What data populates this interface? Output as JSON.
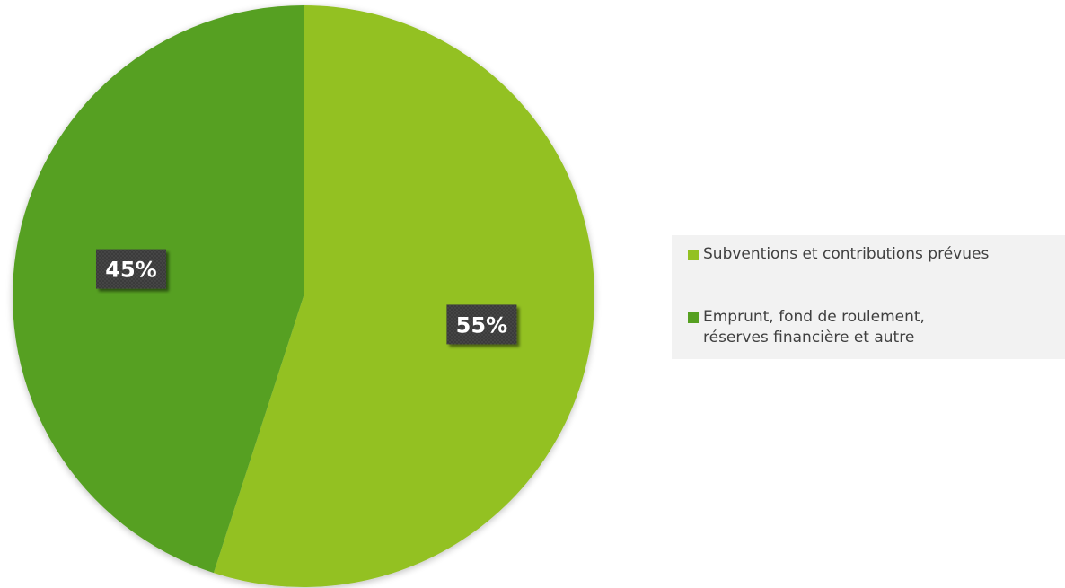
{
  "chart_data": {
    "type": "pie",
    "slices": [
      {
        "label": "Subventions et contributions prévues",
        "value": 55,
        "display": "55%",
        "color": "#93c122"
      },
      {
        "label": "Emprunt, fond de roulement, réserves financière et autre",
        "value": 45,
        "display": "45%",
        "color": "#56a021"
      }
    ],
    "start_angle_deg": 0,
    "direction": "clockwise",
    "legend_position": "right"
  },
  "legend": {
    "items": [
      {
        "label": "Subventions et contributions prévues",
        "color": "#93c122"
      },
      {
        "label": "Emprunt, fond de roulement, réserves financière et autre",
        "color": "#56a021"
      }
    ]
  }
}
